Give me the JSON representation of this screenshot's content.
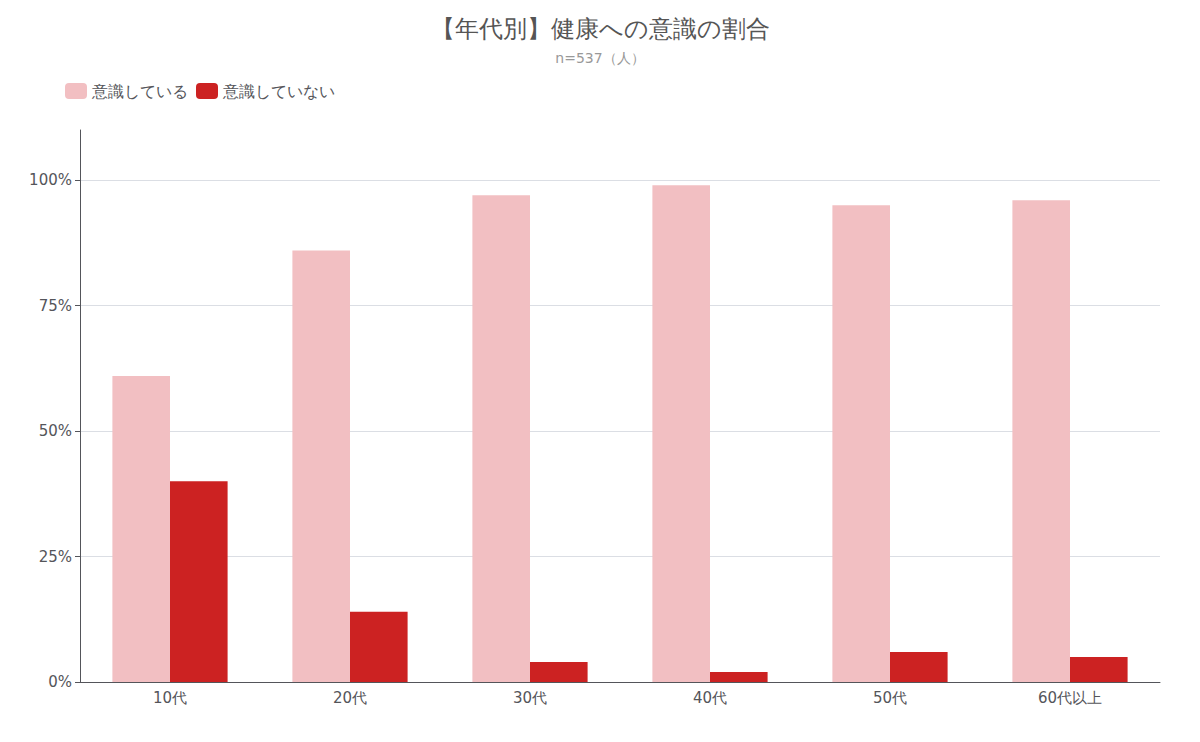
{
  "chart_data": {
    "type": "bar",
    "title": "【年代別】健康への意識の割合",
    "subtitle": "n=537（人）",
    "categories": [
      "10代",
      "20代",
      "30代",
      "40代",
      "50代",
      "60代以上"
    ],
    "series": [
      {
        "name": "意識している",
        "color": "#f2bfc2",
        "values": [
          61,
          86,
          97,
          99,
          95,
          96
        ]
      },
      {
        "name": "意識していない",
        "color": "#cc2222",
        "values": [
          40,
          14,
          4,
          2,
          6,
          5
        ]
      }
    ],
    "ylim": [
      0,
      110
    ],
    "yticks": [
      {
        "value": 0,
        "label": "0%"
      },
      {
        "value": 25,
        "label": "25%"
      },
      {
        "value": 50,
        "label": "50%"
      },
      {
        "value": 75,
        "label": "75%"
      },
      {
        "value": 100,
        "label": "100%"
      }
    ],
    "grid": true,
    "legend": "upper left"
  }
}
